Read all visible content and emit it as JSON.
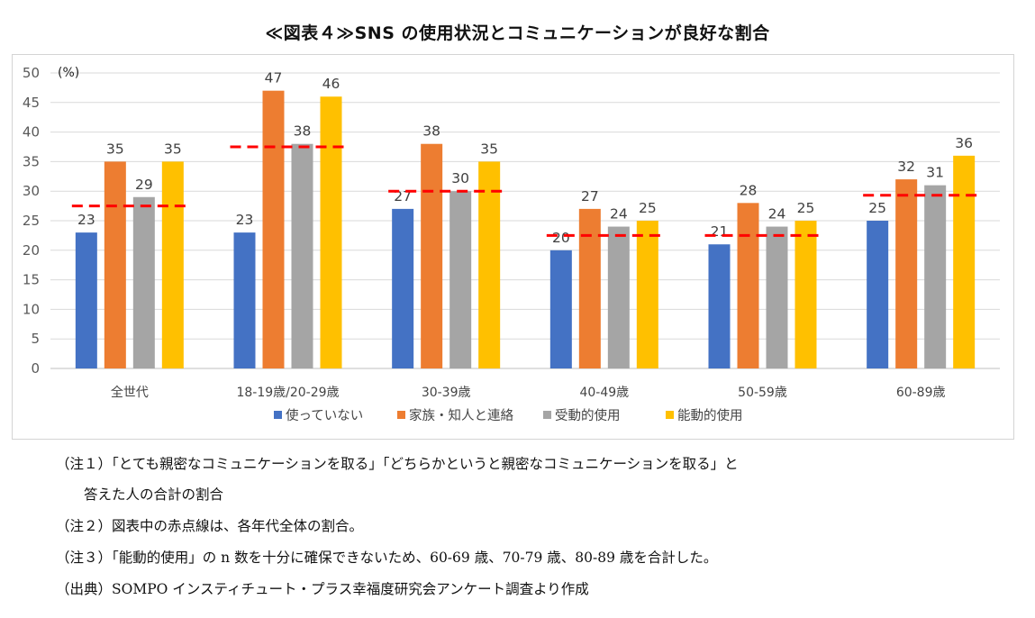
{
  "title": "≪図表４≫SNS の使用状況とコミュニケーションが良好な割合",
  "chart_data": {
    "type": "bar",
    "unit_label": "(%)",
    "ylim": [
      0,
      50
    ],
    "yticks": [
      "0",
      "5",
      "10",
      "15",
      "20",
      "25",
      "30",
      "35",
      "40",
      "45",
      "50"
    ],
    "categories": [
      "全世代",
      "18-19歳/20-29歳",
      "30-39歳",
      "40-49歳",
      "50-59歳",
      "60-89歳"
    ],
    "series": [
      {
        "name": "使っていない",
        "color": "#4472C4",
        "values": [
          23,
          23,
          27,
          20,
          21,
          25
        ],
        "labels": [
          "23",
          "23",
          "27",
          "20",
          "21",
          "25"
        ]
      },
      {
        "name": "家族・知人と連絡",
        "color": "#ED7D31",
        "values": [
          35,
          47,
          38,
          27,
          28,
          32
        ],
        "labels": [
          "35",
          "47",
          "38",
          "27",
          "28",
          "32"
        ]
      },
      {
        "name": "受動的使用",
        "color": "#A5A5A5",
        "values": [
          29,
          38,
          30,
          24,
          24,
          31
        ],
        "labels": [
          "29",
          "38",
          "30",
          "24",
          "24",
          "31"
        ]
      },
      {
        "name": "能動的使用",
        "color": "#FFC000",
        "values": [
          35,
          46,
          35,
          25,
          25,
          36
        ],
        "labels": [
          "35",
          "46",
          "35",
          "25",
          "25",
          "36"
        ]
      }
    ],
    "reference_line": {
      "color": "#FF0000",
      "style": "dashed",
      "values": [
        27.5,
        37.5,
        30,
        22.5,
        22.5,
        29.3
      ]
    },
    "grid": true,
    "legend": "bottom"
  },
  "notes": [
    "（注１）「とても親密なコミュニケーションを取る」「どちらかというと親密なコミュニケーションを取る」と",
    "　　答えた人の合計の割合",
    "（注２）図表中の赤点線は、各年代全体の割合。",
    "（注３）「能動的使用」の n 数を十分に確保できないため、60-69 歳、70-79 歳、80-89 歳を合計した。",
    "（出典）SOMPO インスティチュート・プラス幸福度研究会アンケート調査より作成"
  ]
}
